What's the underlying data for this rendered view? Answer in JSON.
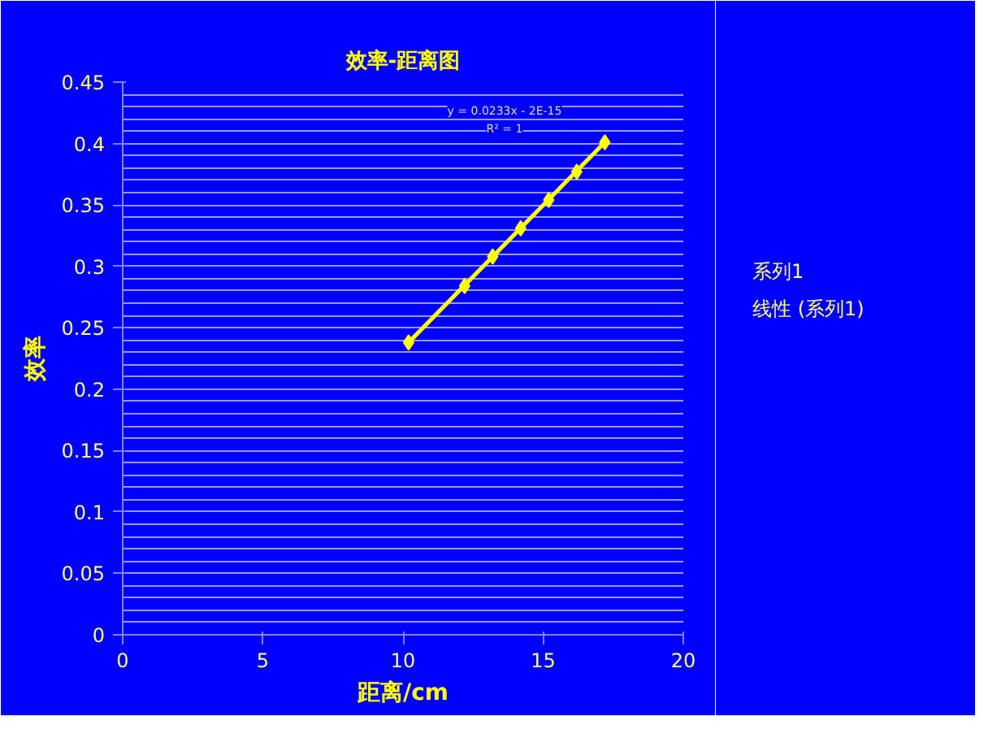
{
  "chart_data": {
    "type": "scatter",
    "title": "效率-距离图",
    "xlabel": "距离/cm",
    "ylabel": "效率",
    "xlim": [
      0,
      20
    ],
    "xticks": [
      0,
      5,
      10,
      15,
      20
    ],
    "ylim": [
      0,
      0.45
    ],
    "yticks": [
      0,
      0.05,
      0.1,
      0.15,
      0.2,
      0.25,
      0.3,
      0.35,
      0.4,
      0.45
    ],
    "grid": "y",
    "legend": "right",
    "series": [
      {
        "name": "系列1",
        "color": "#ffff00",
        "marker": "diamond",
        "x": [
          10.2,
          12.2,
          13.2,
          14.2,
          15.2,
          16.2,
          17.2
        ],
        "values": [
          0.238,
          0.284,
          0.308,
          0.331,
          0.354,
          0.377,
          0.401
        ]
      },
      {
        "name": "线性 (系列1)",
        "type": "line",
        "color": "#ffff00",
        "x": [
          10.2,
          17.2
        ],
        "values": [
          0.238,
          0.401
        ],
        "line_style": "solid"
      }
    ],
    "annotations": [
      "y = 0.0233x - 2E-15",
      "R² = 1"
    ]
  }
}
